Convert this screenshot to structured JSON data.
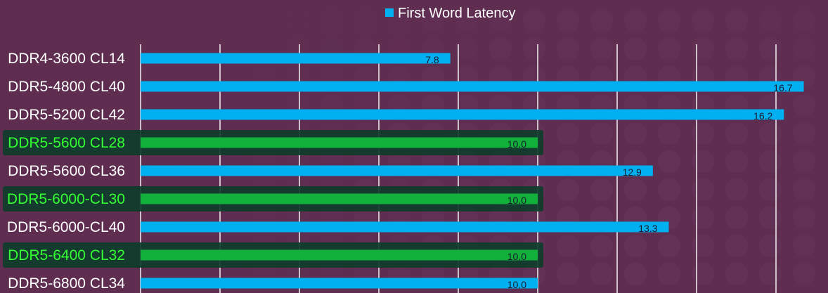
{
  "colors": {
    "background": "#5e2d50",
    "bar": "#00b0f0",
    "highlight_bar": "#10b03a",
    "highlight_box": "#0f3d2d",
    "label": "#ffffff",
    "highlight_label": "#33ff33",
    "value_label": "#1a1a2e",
    "grid": "#f2f2f2",
    "watermark": "#6d3a5f"
  },
  "chart_data": {
    "type": "bar",
    "orientation": "horizontal",
    "title": "",
    "xlabel": "",
    "ylabel": "",
    "xlim": [
      0,
      17
    ],
    "grid": true,
    "legend_position": "top-center",
    "series": [
      {
        "name": "First Word Latency",
        "values": [
          7.8,
          16.7,
          16.2,
          10.0,
          12.9,
          10.0,
          13.3,
          10.0,
          10.0
        ],
        "value_labels": [
          "7.8",
          "16.7",
          "16.2",
          "10.0",
          "12.9",
          "10.0",
          "13.3",
          "10.0",
          "10.0"
        ]
      }
    ],
    "categories": [
      "DDR4-3600 CL14",
      "DDR5-4800 CL40",
      "DDR5-5200 CL42",
      "DDR5-5600 CL28",
      "DDR5-5600 CL36",
      "DDR5-6000-CL30",
      "DDR5-6000-CL40",
      "DDR5-6400 CL32",
      "DDR5-6800 CL34"
    ],
    "highlighted": [
      false,
      false,
      false,
      true,
      false,
      true,
      false,
      true,
      false
    ]
  }
}
